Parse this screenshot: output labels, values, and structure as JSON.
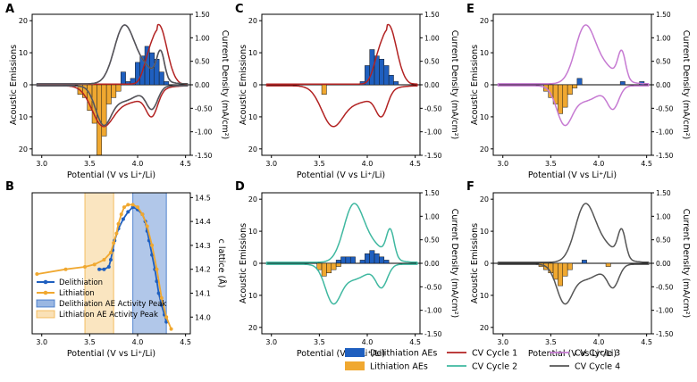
{
  "figure": {
    "legend": {
      "items": [
        {
          "label": "Delithiation AEs",
          "kind": "patch",
          "color": "#1f5fbf"
        },
        {
          "label": "Lithiation AEs",
          "kind": "patch",
          "color": "#f0a830"
        },
        {
          "label": "CV Cycle 1",
          "kind": "line",
          "color": "#b22222"
        },
        {
          "label": "CV Cycle 2",
          "kind": "line",
          "color": "#3fb8a0"
        },
        {
          "label": "CV Cycle 3",
          "kind": "line",
          "color": "#c67ad2"
        },
        {
          "label": "CV Cycle 4",
          "kind": "line",
          "color": "#555555"
        }
      ]
    }
  },
  "chart_data": [
    {
      "panel": "A",
      "type": "bar",
      "xlabel": "Potential (V vs Li⁺/Li)",
      "ylabel": "Acoustic Emissions",
      "y2label": "Current Density (mA/cm²)",
      "xlim": [
        2.9,
        4.55
      ],
      "ylim": [
        -22,
        22
      ],
      "y2lim": [
        -1.5,
        1.5
      ],
      "xticks": [
        "3.0",
        "3.5",
        "4.0",
        "4.5"
      ],
      "yticks": [
        "20",
        "10",
        "0",
        "10",
        "20"
      ],
      "y2ticks": [
        "1.50",
        "1.00",
        "0.50",
        "0.00",
        "-0.50",
        "-1.00",
        "-1.50"
      ],
      "delithiation_bars": {
        "bins": [
          3.85,
          3.9,
          3.95,
          4.0,
          4.05,
          4.1,
          4.15,
          4.2,
          4.25,
          4.3
        ],
        "values": [
          4,
          1,
          2,
          7,
          9,
          12,
          10,
          8,
          4,
          1
        ]
      },
      "lithiation_bars": {
        "bins": [
          3.4,
          3.45,
          3.5,
          3.55,
          3.6,
          3.65,
          3.7,
          3.75,
          3.8
        ],
        "values": [
          -3,
          -4,
          -8,
          -12,
          -22,
          -16,
          -6,
          -4,
          -2
        ]
      },
      "cv_series": [
        {
          "name": "CV Cycle 1",
          "color": "#b22222",
          "profile": "cycle1"
        },
        {
          "name": "CV Cycle 2",
          "color": "#3fb8a0",
          "profile": "normal"
        },
        {
          "name": "CV Cycle 3",
          "color": "#c67ad2",
          "profile": "normal"
        },
        {
          "name": "CV Cycle 4",
          "color": "#555555",
          "profile": "normal"
        }
      ]
    },
    {
      "panel": "C",
      "type": "bar",
      "xlabel": "Potential (V vs Li⁺/Li)",
      "ylabel": "Acoustic Emissions",
      "y2label": "Current Density (mA/cm²)",
      "xlim": [
        2.9,
        4.55
      ],
      "ylim": [
        -22,
        22
      ],
      "y2lim": [
        -1.5,
        1.5
      ],
      "xticks": [
        "3.0",
        "3.5",
        "4.0",
        "4.5"
      ],
      "yticks": [
        "20",
        "10",
        "0",
        "10",
        "20"
      ],
      "y2ticks": [
        "1.50",
        "1.00",
        "0.50",
        "0.00",
        "-0.50",
        "-1.00",
        "-1.50"
      ],
      "delithiation_bars": {
        "bins": [
          3.95,
          4.0,
          4.05,
          4.1,
          4.15,
          4.2,
          4.25,
          4.3
        ],
        "values": [
          1,
          6,
          11,
          9,
          8,
          6,
          3,
          1
        ]
      },
      "lithiation_bars": {
        "bins": [
          3.55
        ],
        "values": [
          -3
        ]
      },
      "cv_series": [
        {
          "name": "CV Cycle 1",
          "color": "#b22222",
          "profile": "cycle1"
        }
      ]
    },
    {
      "panel": "E",
      "type": "bar",
      "xlabel": "Potential (V vs Li⁺/Li)",
      "ylabel": "Acoustic Emissions",
      "y2label": "Current Density (mA/cm²)",
      "xlim": [
        2.9,
        4.55
      ],
      "ylim": [
        -22,
        22
      ],
      "y2lim": [
        -1.5,
        1.5
      ],
      "xticks": [
        "3.0",
        "3.5",
        "4.0",
        "4.5"
      ],
      "yticks": [
        "20",
        "10",
        "0",
        "10",
        "20"
      ],
      "y2ticks": [
        "1.50",
        "1.00",
        "0.50",
        "0.00",
        "-0.50",
        "-1.00",
        "-1.50"
      ],
      "delithiation_bars": {
        "bins": [
          3.8,
          4.25,
          4.45
        ],
        "values": [
          2,
          1,
          1
        ]
      },
      "lithiation_bars": {
        "bins": [
          3.45,
          3.5,
          3.55,
          3.6,
          3.65,
          3.7,
          3.75
        ],
        "values": [
          -2,
          -4,
          -6,
          -9,
          -7,
          -3,
          -1
        ]
      },
      "cv_series": [
        {
          "name": "CV Cycle 3",
          "color": "#c67ad2",
          "profile": "normal"
        }
      ]
    },
    {
      "panel": "D",
      "type": "bar",
      "xlabel": "Potential (V vs Li⁺/Li)",
      "ylabel": "Acoustic Emissions",
      "y2label": "Current Density (mA/cm²)",
      "xlim": [
        2.9,
        4.55
      ],
      "ylim": [
        -22,
        22
      ],
      "y2lim": [
        -1.5,
        1.5
      ],
      "xticks": [
        "3.0",
        "3.5",
        "4.0",
        "4.5"
      ],
      "yticks": [
        "20",
        "10",
        "0",
        "10",
        "20"
      ],
      "y2ticks": [
        "1.50",
        "1.00",
        "0.50",
        "0.00",
        "-0.50",
        "-1.00",
        "-1.50"
      ],
      "delithiation_bars": {
        "bins": [
          3.7,
          3.75,
          3.8,
          3.85,
          3.95,
          4.0,
          4.05,
          4.1,
          4.15,
          4.2
        ],
        "values": [
          1,
          2,
          2,
          2,
          1,
          3,
          4,
          3,
          2,
          1
        ]
      },
      "lithiation_bars": {
        "bins": [
          3.5,
          3.55,
          3.6,
          3.65,
          3.7
        ],
        "values": [
          -2,
          -4,
          -3,
          -2,
          -1
        ]
      },
      "cv_series": [
        {
          "name": "CV Cycle 2",
          "color": "#3fb8a0",
          "profile": "normal"
        }
      ]
    },
    {
      "panel": "F",
      "type": "bar",
      "xlabel": "Potential (V vs Li⁺/Li)",
      "ylabel": "Acoustic Emissions",
      "y2label": "Current Density (mA/cm²)",
      "xlim": [
        2.9,
        4.55
      ],
      "ylim": [
        -22,
        22
      ],
      "y2lim": [
        -1.5,
        1.5
      ],
      "xticks": [
        "3.0",
        "3.5",
        "4.0",
        "4.5"
      ],
      "yticks": [
        "20",
        "10",
        "0",
        "10",
        "20"
      ],
      "y2ticks": [
        "1.50",
        "1.00",
        "0.50",
        "0.00",
        "-0.50",
        "-1.00",
        "-1.50"
      ],
      "delithiation_bars": {
        "bins": [
          3.85
        ],
        "values": [
          1
        ]
      },
      "lithiation_bars": {
        "bins": [
          3.4,
          3.45,
          3.5,
          3.55,
          3.6,
          3.65,
          3.7,
          4.1
        ],
        "values": [
          -1,
          -2,
          -3,
          -5,
          -7,
          -4,
          -2,
          -1
        ]
      },
      "cv_series": [
        {
          "name": "CV Cycle 4",
          "color": "#555555",
          "profile": "normal"
        }
      ]
    },
    {
      "panel": "B",
      "type": "line",
      "xlabel": "Potential (V vs Li⁺/Li)",
      "y2label": "c lattice (Å)",
      "xlim": [
        2.9,
        4.55
      ],
      "y2lim": [
        13.93,
        14.52
      ],
      "xticks": [
        "3.0",
        "3.5",
        "4.0",
        "4.5"
      ],
      "y2ticks": [
        "14.5",
        "14.4",
        "14.3",
        "14.2",
        "14.1",
        "14.0"
      ],
      "bands": [
        {
          "name": "Delithiation AE Activity Peak",
          "x0": 3.95,
          "x1": 4.3,
          "color": "#1f5fbf"
        },
        {
          "name": "Lithiation AE Activity Peak",
          "x0": 3.45,
          "x1": 3.75,
          "color": "#f0a830"
        }
      ],
      "series": [
        {
          "name": "Delithiation",
          "color": "#1f5fbf",
          "x": [
            3.6,
            3.65,
            3.7,
            3.72,
            3.74,
            3.76,
            3.8,
            3.85,
            3.9,
            3.95,
            4.0,
            4.05,
            4.08,
            4.1,
            4.12,
            4.15,
            4.18,
            4.2,
            4.22,
            4.25,
            4.28,
            4.3
          ],
          "y": [
            14.2,
            14.2,
            14.21,
            14.24,
            14.28,
            14.32,
            14.37,
            14.41,
            14.44,
            14.46,
            14.45,
            14.43,
            14.4,
            14.36,
            14.32,
            14.26,
            14.2,
            14.15,
            14.1,
            14.05,
            14.01,
            13.98
          ]
        },
        {
          "name": "Lithiation",
          "color": "#f0a830",
          "x": [
            2.95,
            3.25,
            3.45,
            3.55,
            3.65,
            3.72,
            3.75,
            3.78,
            3.8,
            3.83,
            3.86,
            3.9,
            3.95,
            4.0,
            4.05,
            4.1,
            4.15,
            4.2,
            4.25,
            4.3,
            4.35
          ],
          "y": [
            14.18,
            14.2,
            14.21,
            14.22,
            14.24,
            14.27,
            14.31,
            14.35,
            14.39,
            14.43,
            14.46,
            14.47,
            14.47,
            14.46,
            14.43,
            14.38,
            14.3,
            14.2,
            14.08,
            14.0,
            13.95
          ]
        }
      ]
    }
  ]
}
